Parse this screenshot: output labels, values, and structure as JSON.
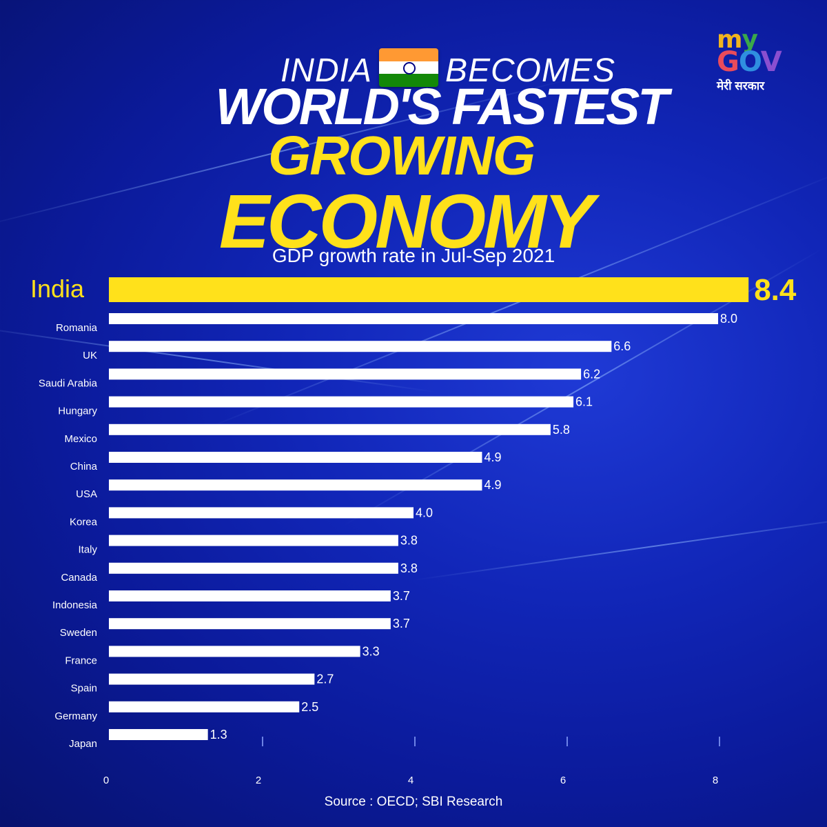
{
  "header": {
    "line1_left": "INDIA",
    "line1_right": "BECOMES",
    "line2": "WORLD'S FASTEST",
    "line3": "GROWING",
    "line4": "ECONOMY"
  },
  "logo": {
    "my": "my",
    "gov": "GOV",
    "hindi": "मेरी सरकार"
  },
  "footer": {
    "source": "Source : OECD; SBI Research"
  },
  "colors": {
    "highlight": "#ffe11b",
    "bar": "#ffffff",
    "background": "#1126b8"
  },
  "chart_data": {
    "type": "bar",
    "orientation": "horizontal",
    "title": "GDP growth rate in Jul-Sep 2021",
    "categories": [
      "India",
      "Romania",
      "UK",
      "Saudi Arabia",
      "Hungary",
      "Mexico",
      "China",
      "USA",
      "Korea",
      "Italy",
      "Canada",
      "Indonesia",
      "Sweden",
      "France",
      "Spain",
      "Germany",
      "Japan"
    ],
    "values": [
      8.4,
      8.0,
      6.6,
      6.2,
      6.1,
      5.8,
      4.9,
      4.9,
      4.0,
      3.8,
      3.8,
      3.7,
      3.7,
      3.3,
      2.7,
      2.5,
      1.3
    ],
    "value_labels": [
      "8.4",
      "8.0",
      "6.6",
      "6.2",
      "6.1",
      "5.8",
      "4.9",
      "4.9",
      "4.0",
      "3.8",
      "3.8",
      "3.7",
      "3.7",
      "3.3",
      "2.7",
      "2.5",
      "1.3"
    ],
    "highlight": "India",
    "xlim": [
      0,
      9
    ],
    "xticks": [
      0,
      2,
      4,
      6,
      8
    ],
    "xtick_labels": [
      "0",
      "2",
      "4",
      "6",
      "8"
    ],
    "grid": false,
    "xlabel": "",
    "ylabel": ""
  }
}
